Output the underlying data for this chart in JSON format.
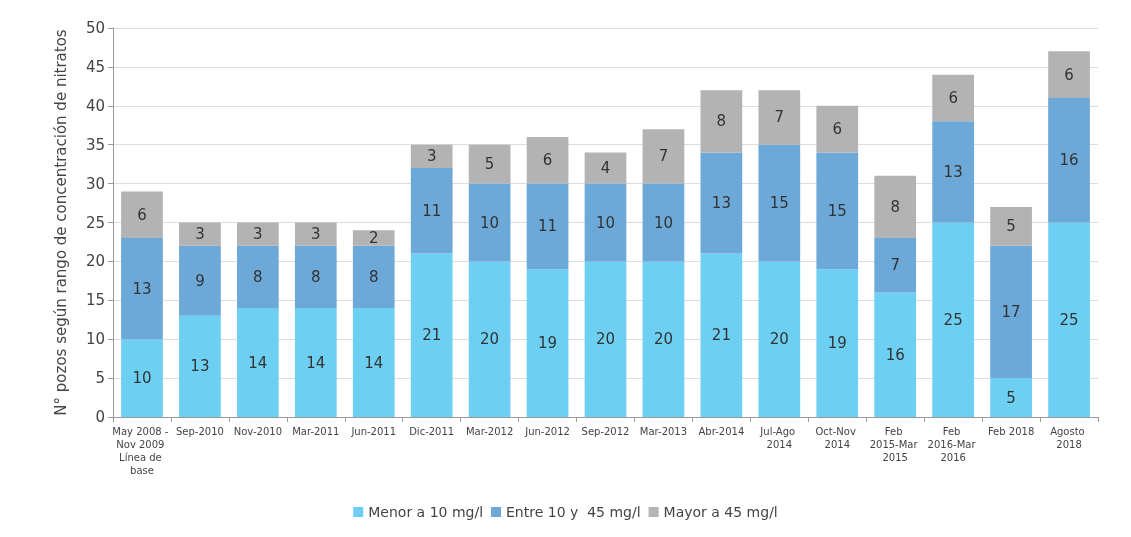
{
  "chart_data": {
    "type": "bar",
    "stacked": true,
    "ylabel": "N° pozos según rango de concentración de nitratos",
    "categories": [
      "May 2008 - Nov 2009 Línea de base",
      "Sep-2010",
      "Nov-2010",
      "Mar-2011",
      "Jun-2011",
      "Dic-2011",
      "Mar-2012",
      "Jun-2012",
      "Sep-2012",
      "Mar-2013",
      "Abr-2014",
      "Jul-Ago 2014",
      "Oct-Nov 2014",
      "Feb 2015-Mar 2015",
      "Feb 2016-Mar 2016",
      "Feb 2018",
      "Agosto 2018"
    ],
    "series": [
      {
        "name": "Menor a 10 mg/l",
        "color": "#6dcff2",
        "values": [
          10,
          13,
          14,
          14,
          14,
          21,
          20,
          19,
          20,
          20,
          21,
          20,
          19,
          16,
          25,
          5,
          25
        ]
      },
      {
        "name": "Entre 10 y  45 mg/l",
        "color": "#6ca8d8",
        "values": [
          13,
          9,
          8,
          8,
          8,
          11,
          10,
          11,
          10,
          10,
          13,
          15,
          15,
          7,
          13,
          17,
          16
        ]
      },
      {
        "name": "Mayor a 45 mg/l",
        "color": "#b3b3b3",
        "values": [
          6,
          3,
          3,
          3,
          2,
          3,
          5,
          6,
          4,
          7,
          8,
          7,
          6,
          8,
          6,
          5,
          6
        ]
      }
    ],
    "ylim": [
      0,
      50
    ],
    "yticks": [
      0,
      5,
      10,
      15,
      20,
      25,
      30,
      35,
      40,
      45,
      50
    ],
    "grid": "y",
    "legend": "bottom",
    "data_labels": true
  }
}
